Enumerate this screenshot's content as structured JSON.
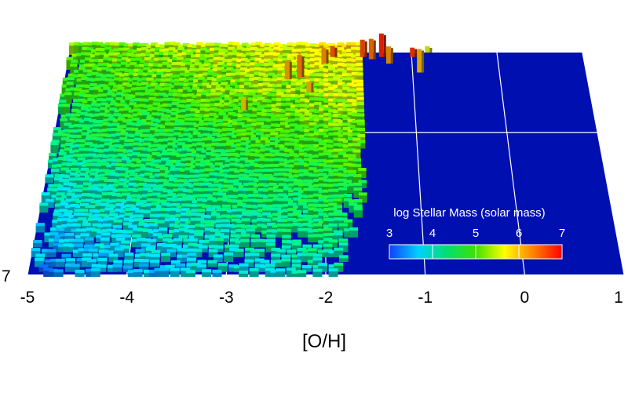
{
  "chart_data": {
    "type": "heatmap",
    "title": "",
    "xlabel": "[O/H]",
    "x_ticks": [
      "-5",
      "-4",
      "-3",
      "-2",
      "-1",
      "0",
      "1"
    ],
    "xlim": [
      -5,
      1
    ],
    "y_tick_visible": "7",
    "colorbar": {
      "label": "log Stellar Mass (solar mass)",
      "ticks": [
        "3",
        "4",
        "5",
        "6",
        "7"
      ],
      "range": [
        3,
        7
      ],
      "colors": [
        "#1040ff",
        "#00d0ff",
        "#00e070",
        "#40e000",
        "#ffff00",
        "#ff8000",
        "#ff0000"
      ]
    },
    "background_color": "#0010b0",
    "grid": true,
    "legend_placement": "bottom-right",
    "view": "3D perspective bar histogram"
  }
}
